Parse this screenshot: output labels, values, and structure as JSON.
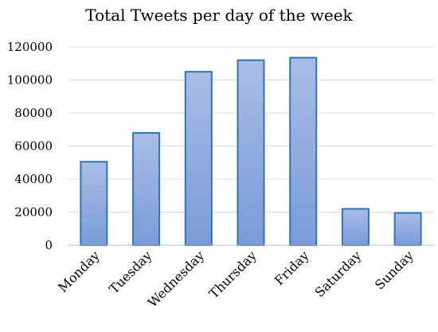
{
  "chart_data": {
    "type": "bar",
    "title": "Total Tweets per day of the week",
    "xlabel": "",
    "ylabel": "",
    "categories": [
      "Monday",
      "Tuesday",
      "Wednesday",
      "Thursday",
      "Friday",
      "Saturday",
      "Sunday"
    ],
    "values": [
      50500,
      68000,
      105000,
      112000,
      113500,
      22000,
      19500
    ],
    "ylim": [
      0,
      120000
    ],
    "yticks": [
      "0",
      "20000",
      "40000",
      "60000",
      "80000",
      "100000",
      "120000"
    ],
    "grid": true,
    "legend": "none",
    "colors": {
      "bar_top": "#a9bde6",
      "bar_bottom": "#7a9bd8",
      "bar_border": "#2e75b6"
    }
  }
}
